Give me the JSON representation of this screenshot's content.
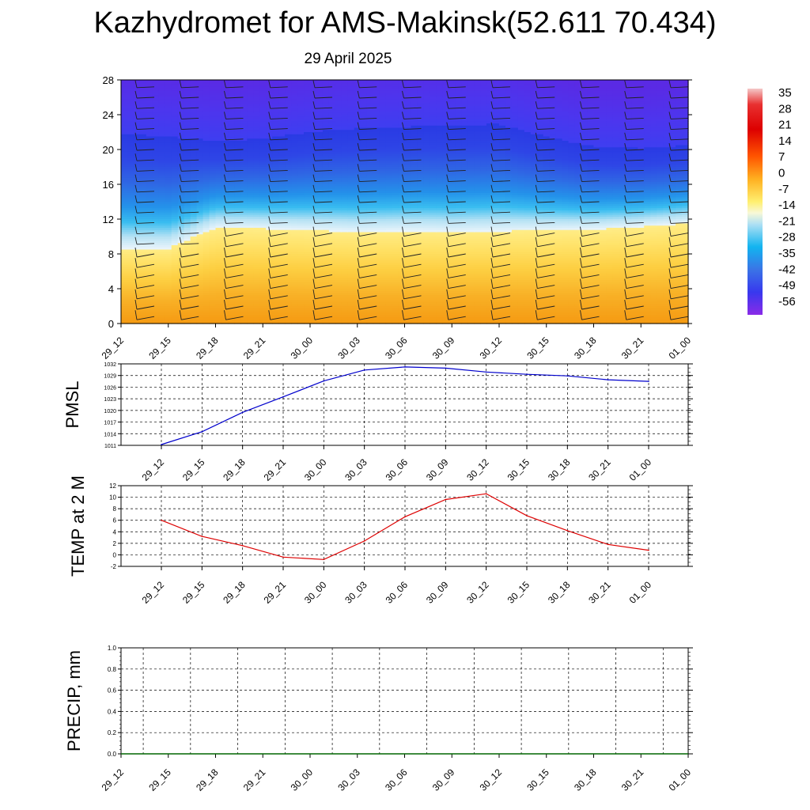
{
  "title": "Kazhydromet for AMS-Makinsk(52.611 70.434)",
  "subtitle": "29 April 2025",
  "colors": {
    "pmsl_line": "#0000cc",
    "temp_line": "#dd0000",
    "precip_line": "#006600",
    "barb": "#222222"
  },
  "chart_data": [
    {
      "type": "heatmap",
      "name": "cross-section",
      "x_tick_labels": [
        "29_12",
        "29_15",
        "29_18",
        "29_21",
        "30_00",
        "30_03",
        "30_06",
        "30_09",
        "30_12",
        "30_15",
        "30_18",
        "30_21",
        "01_00"
      ],
      "yticks": [
        0,
        4,
        8,
        12,
        16,
        20,
        24,
        28
      ],
      "ylim": [
        0,
        28
      ],
      "colorbar_labels": [
        "35",
        "28",
        "21",
        "14",
        "7",
        "0",
        "-7",
        "-14",
        "-21",
        "-28",
        "-35",
        "-42",
        "-49",
        "-56"
      ],
      "freezing_level": [
        8.6,
        8.6,
        11.0,
        10.9,
        10.7,
        10.5,
        10.6,
        10.5,
        10.6,
        10.7,
        10.8,
        11.1,
        11.5
      ],
      "tropopause_level": [
        21.8,
        21.5,
        21.0,
        21.2,
        22.0,
        22.4,
        22.6,
        22.8,
        22.9,
        21.5,
        20.3,
        20.1,
        20.5
      ],
      "wind_barbs": true
    },
    {
      "type": "line",
      "ylabel": "PMSL",
      "ylim": [
        1011,
        1032
      ],
      "yticks": [
        1011,
        1014,
        1017,
        1020,
        1023,
        1026,
        1029,
        1032
      ],
      "categories": [
        "29_12",
        "29_15",
        "29_18",
        "29_21",
        "30_00",
        "30_03",
        "30_06",
        "30_09",
        "30_12",
        "30_15",
        "30_18",
        "30_21",
        "01_00"
      ],
      "values": [
        1011.2,
        1014.5,
        1019.5,
        1023.5,
        1027.6,
        1030.4,
        1031.2,
        1030.9,
        1029.9,
        1029.3,
        1028.9,
        1027.9,
        1027.5
      ],
      "grid": true
    },
    {
      "type": "line",
      "ylabel": "TEMP at 2 M",
      "ylim": [
        -2,
        12
      ],
      "yticks": [
        -2,
        0,
        2,
        4,
        6,
        8,
        10,
        12
      ],
      "categories": [
        "29_12",
        "29_15",
        "29_18",
        "29_21",
        "30_00",
        "30_03",
        "30_06",
        "30_09",
        "30_12",
        "30_15",
        "30_18",
        "30_21",
        "01_00"
      ],
      "values": [
        6.0,
        3.2,
        1.6,
        -0.4,
        -0.8,
        2.4,
        6.6,
        9.6,
        10.6,
        6.8,
        4.2,
        1.8,
        0.8
      ],
      "grid": true
    },
    {
      "type": "line",
      "ylabel": "PRECIP, mm",
      "ylim": [
        0,
        1
      ],
      "yticks": [
        "0.0",
        "0.2",
        "0.4",
        "0.6",
        "0.8",
        "1.0"
      ],
      "categories": [
        "29_12",
        "29_15",
        "29_18",
        "29_21",
        "30_00",
        "30_03",
        "30_06",
        "30_09",
        "30_12",
        "30_15",
        "30_18",
        "30_21",
        "01_00"
      ],
      "values": [
        0,
        0,
        0,
        0,
        0,
        0,
        0,
        0,
        0,
        0,
        0,
        0,
        0
      ],
      "grid": true
    }
  ]
}
